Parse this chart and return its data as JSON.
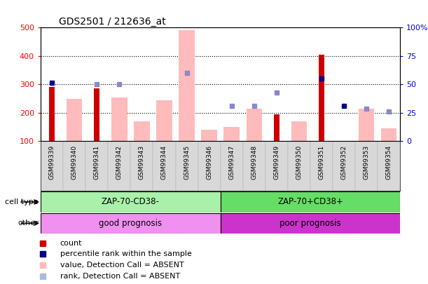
{
  "title": "GDS2501 / 212636_at",
  "samples": [
    "GSM99339",
    "GSM99340",
    "GSM99341",
    "GSM99342",
    "GSM99343",
    "GSM99344",
    "GSM99345",
    "GSM99346",
    "GSM99347",
    "GSM99348",
    "GSM99349",
    "GSM99350",
    "GSM99351",
    "GSM99352",
    "GSM99353",
    "GSM99354"
  ],
  "red_bar_values": [
    290,
    null,
    285,
    null,
    null,
    null,
    null,
    null,
    null,
    null,
    195,
    null,
    405,
    null,
    null,
    null
  ],
  "pink_bar_values": [
    null,
    250,
    null,
    255,
    170,
    245,
    490,
    140,
    150,
    215,
    null,
    170,
    null,
    null,
    215,
    145
  ],
  "blue_sq_values": [
    305,
    null,
    300,
    300,
    null,
    null,
    340,
    null,
    225,
    225,
    270,
    null,
    320,
    225,
    215,
    205
  ],
  "blue_sq_dark": [
    true,
    false,
    false,
    false,
    false,
    false,
    false,
    false,
    false,
    false,
    false,
    false,
    true,
    true,
    false,
    false
  ],
  "ylim_left": [
    100,
    500
  ],
  "ylim_right": [
    0,
    100
  ],
  "yticks_left": [
    100,
    200,
    300,
    400,
    500
  ],
  "yticks_right": [
    0,
    25,
    50,
    75,
    100
  ],
  "ytick_labels_right": [
    "0",
    "25",
    "50",
    "75",
    "100%"
  ],
  "grid_values": [
    200,
    300,
    400
  ],
  "split_index": 8,
  "cell_type_labels": [
    "ZAP-70-CD38-",
    "ZAP-70+CD38+"
  ],
  "cell_type_colors": [
    "#aaf0aa",
    "#66dd66"
  ],
  "other_colors_left": "#f090f0",
  "other_colors_right": "#cc33cc",
  "other_labels": [
    "good prognosis",
    "poor prognosis"
  ],
  "legend_items": [
    {
      "color": "#cc0000",
      "label": "count"
    },
    {
      "color": "#00008b",
      "label": "percentile rank within the sample"
    },
    {
      "color": "#ffbbbb",
      "label": "value, Detection Call = ABSENT"
    },
    {
      "color": "#aabbdd",
      "label": "rank, Detection Call = ABSENT"
    }
  ]
}
